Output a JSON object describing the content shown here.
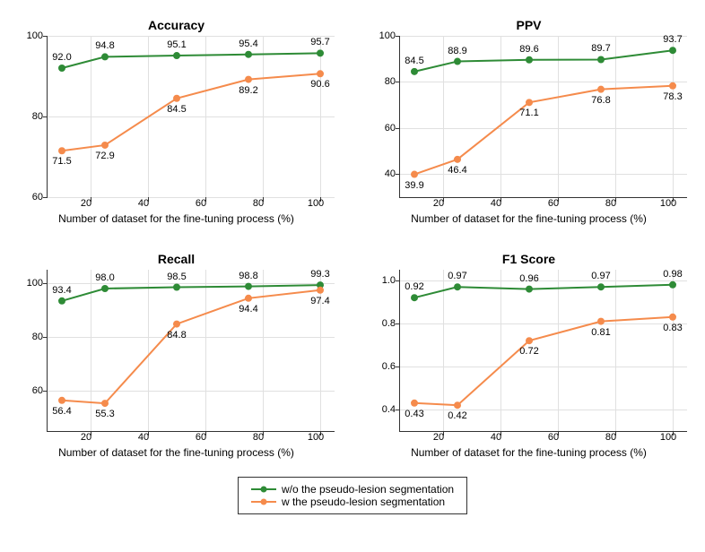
{
  "global": {
    "xlabel": "Number of dataset for the fine-tuning process (%)",
    "xvalues": [
      10,
      25,
      50,
      75,
      100
    ],
    "xticks": [
      20,
      40,
      60,
      80,
      100
    ],
    "xlim": [
      5,
      105
    ],
    "colors": {
      "series_a": "#2e8b36",
      "series_b": "#f58b4c",
      "grid": "#e0e0e0",
      "axis": "#333333",
      "bg": "#ffffff"
    },
    "line_width": 2,
    "marker_radius": 4,
    "font_family": "Arial",
    "title_fontsize": 14,
    "label_fontsize": 12,
    "tick_fontsize": 11
  },
  "legend": {
    "a": "w/o the pseudo-lesion segmentation",
    "b": "w the pseudo-lesion segmentation"
  },
  "charts": [
    {
      "title": "Accuracy",
      "ylim": [
        60,
        100
      ],
      "yticks": [
        60,
        80,
        100
      ],
      "a": [
        92.0,
        94.8,
        95.1,
        95.4,
        95.7
      ],
      "b": [
        71.5,
        72.9,
        84.5,
        89.2,
        90.6
      ],
      "a_label_pos": "above",
      "b_label_pos": "below",
      "decimals": 1
    },
    {
      "title": "PPV",
      "ylim": [
        30,
        100
      ],
      "yticks": [
        40,
        60,
        80,
        100
      ],
      "a": [
        84.5,
        88.9,
        89.6,
        89.7,
        93.7
      ],
      "b": [
        39.9,
        46.4,
        71.1,
        76.8,
        78.3
      ],
      "a_label_pos": "above",
      "b_label_pos": "below",
      "decimals": 1
    },
    {
      "title": "Recall",
      "ylim": [
        45,
        105
      ],
      "yticks": [
        60,
        80,
        100
      ],
      "a": [
        93.4,
        98.0,
        98.5,
        98.8,
        99.3
      ],
      "b": [
        56.4,
        55.3,
        84.8,
        94.4,
        97.4
      ],
      "a_label_pos": "above",
      "b_label_pos": "below",
      "decimals": 1
    },
    {
      "title": "F1 Score",
      "ylim": [
        0.3,
        1.05
      ],
      "yticks": [
        0.4,
        0.6,
        0.8,
        1.0
      ],
      "a": [
        0.92,
        0.97,
        0.96,
        0.97,
        0.98
      ],
      "b": [
        0.43,
        0.42,
        0.72,
        0.81,
        0.83
      ],
      "a_label_pos": "above",
      "b_label_pos": "below",
      "decimals": 2
    }
  ]
}
